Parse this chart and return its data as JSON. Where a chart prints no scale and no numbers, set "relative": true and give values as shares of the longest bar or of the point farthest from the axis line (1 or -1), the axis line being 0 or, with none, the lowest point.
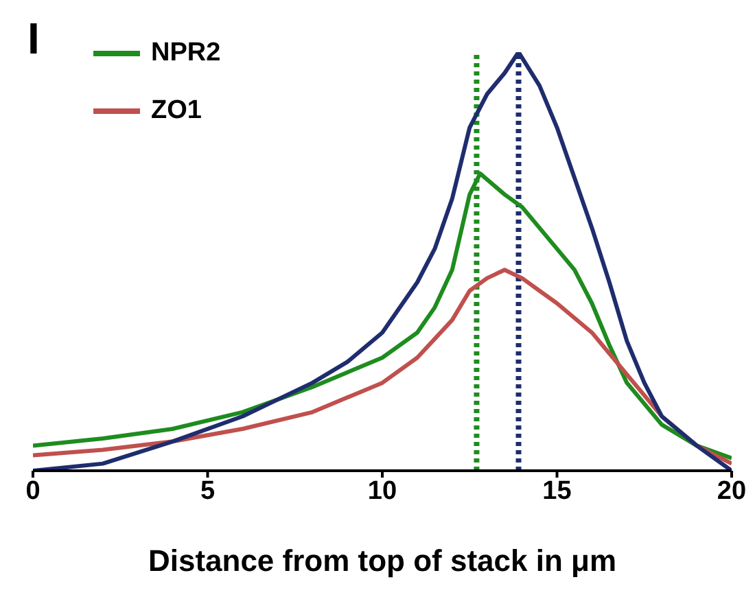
{
  "chart_data": {
    "type": "line",
    "relative": true,
    "xlabel": "Distance from top of stack in μm",
    "annotations": [
      "I"
    ],
    "xlim": [
      0,
      20
    ],
    "xticks": [
      0,
      5,
      10,
      15,
      20
    ],
    "legend": "top left",
    "grid": false,
    "marker": "none",
    "line_style": "solid",
    "series": [
      {
        "name": "NPR2",
        "color": "#1e8c1e",
        "x": [
          0,
          2,
          4,
          6,
          8,
          10,
          11,
          11.5,
          12,
          12.5,
          12.8,
          13.5,
          14,
          14.5,
          15,
          15.5,
          16,
          16.5,
          17,
          18,
          19,
          20
        ],
        "values": [
          0.06,
          0.077,
          0.1,
          0.14,
          0.2,
          0.27,
          0.33,
          0.39,
          0.48,
          0.66,
          0.71,
          0.66,
          0.63,
          0.58,
          0.53,
          0.48,
          0.4,
          0.3,
          0.21,
          0.11,
          0.06,
          0.03
        ]
      },
      {
        "name": "ZO1",
        "color": "#c0504d",
        "x": [
          0,
          2,
          4,
          6,
          8,
          10,
          11,
          12,
          12.5,
          13,
          13.5,
          14,
          14.5,
          15,
          16,
          17,
          18,
          19,
          20
        ],
        "values": [
          0.037,
          0.05,
          0.07,
          0.1,
          0.14,
          0.21,
          0.27,
          0.36,
          0.43,
          0.46,
          0.48,
          0.46,
          0.43,
          0.4,
          0.33,
          0.23,
          0.13,
          0.06,
          0.017
        ]
      },
      {
        "color": "#1f2d6e",
        "x": [
          0,
          2,
          4,
          6,
          8,
          9,
          10,
          11,
          11.5,
          12,
          12.5,
          13,
          13.5,
          13.9,
          14.5,
          15,
          15.5,
          16,
          16.5,
          17,
          17.5,
          18,
          19,
          20
        ],
        "values": [
          0,
          0.017,
          0.07,
          0.13,
          0.21,
          0.26,
          0.33,
          0.45,
          0.53,
          0.65,
          0.82,
          0.9,
          0.95,
          1,
          0.92,
          0.82,
          0.7,
          0.58,
          0.45,
          0.31,
          0.21,
          0.13,
          0.06,
          0
        ]
      }
    ],
    "ref_lines": [
      {
        "axis": "x",
        "value": 12.7,
        "color": "#1e8c1e",
        "line_style": "dotted"
      },
      {
        "axis": "x",
        "value": 13.9,
        "color": "#1f2d6e",
        "line_style": "dotted"
      }
    ]
  }
}
